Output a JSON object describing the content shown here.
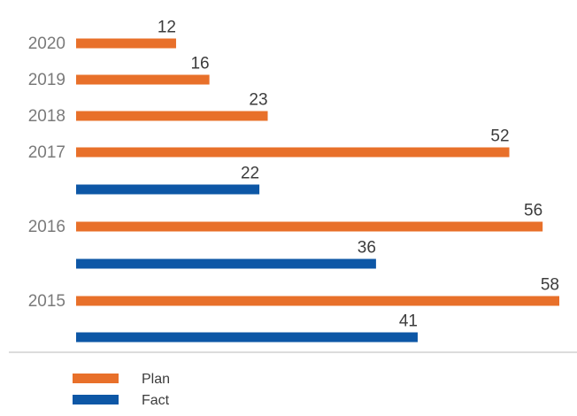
{
  "chart_data": {
    "type": "bar",
    "orientation": "horizontal",
    "categories": [
      "2020",
      "2019",
      "2018",
      "2017",
      "2016",
      "2015"
    ],
    "series": [
      {
        "name": "Plan",
        "color": "#e8702a",
        "values": [
          12,
          16,
          23,
          52,
          56,
          58
        ]
      },
      {
        "name": "Fact",
        "color": "#0d57a6",
        "values": [
          null,
          null,
          null,
          22,
          36,
          41
        ]
      }
    ],
    "title": "",
    "xlabel": "",
    "ylabel": "",
    "xlim": [
      0,
      58
    ],
    "grid": false,
    "legend_position": "bottom-left"
  }
}
